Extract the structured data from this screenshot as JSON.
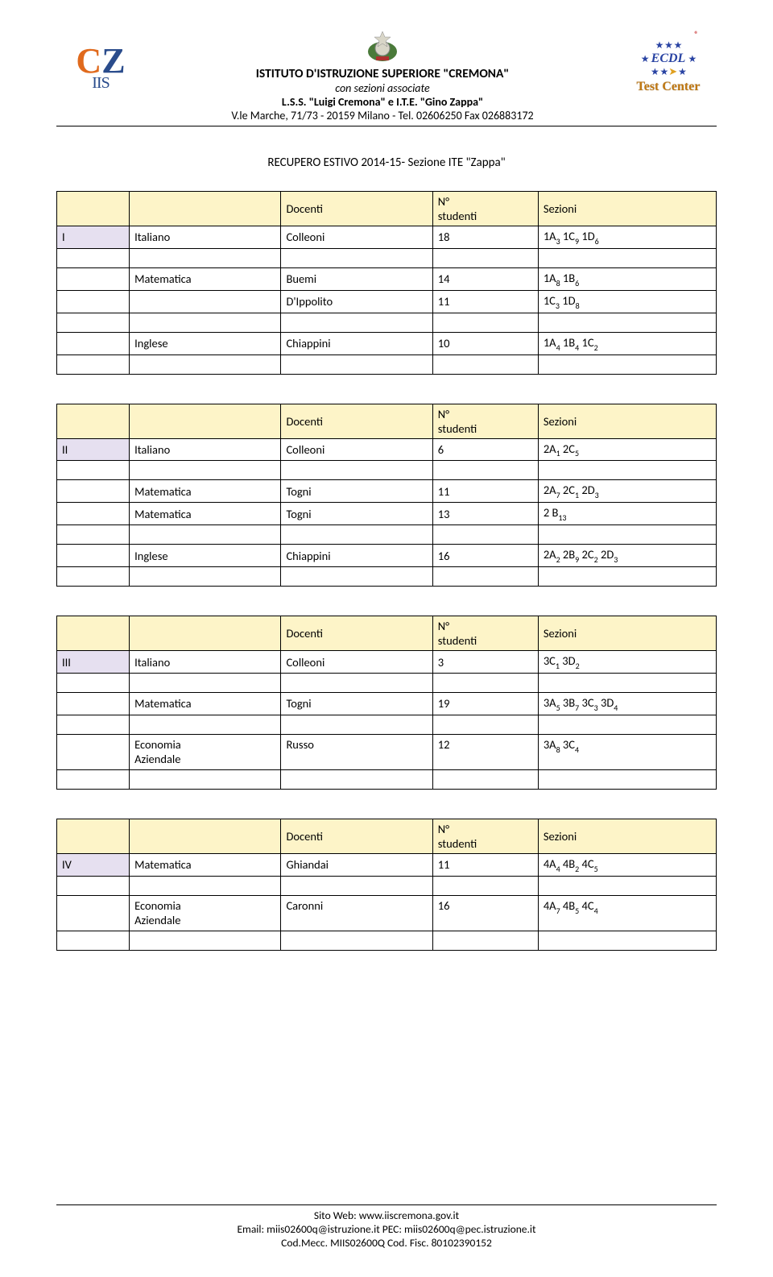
{
  "header": {
    "logo_letters": {
      "C": "C",
      "Z": "Z",
      "IIS": "IIS"
    },
    "inst_title": "ISTITUTO D'ISTRUZIONE SUPERIORE \"CREMONA\"",
    "inst_sub": "con sezioni associate",
    "inst_line3": "L.S.S. \"Luigi Cremona\" e I.T.E. \"Gino Zappa\"",
    "inst_line4": "V.le Marche, 71/73 - 20159 Milano  - Tel. 02606250 Fax 026883172",
    "ecdl": "ECDL",
    "test_center": "Test Center",
    "reg": "®"
  },
  "doc_title": "RECUPERO ESTIVO 2014-15- Sezione ITE \"Zappa\"",
  "col_headers": {
    "docenti": "Docenti",
    "n_studenti_1": "N°",
    "n_studenti_2": "studenti",
    "sezioni": "Sezioni"
  },
  "tables": {
    "t1": {
      "level": "I",
      "rows": [
        {
          "c2": "Italiano",
          "c3": "Colleoni",
          "c4": "18",
          "sez": [
            [
              "1A",
              "3"
            ],
            [
              "1C",
              "9"
            ],
            [
              "1D",
              "6"
            ]
          ]
        },
        null,
        {
          "c2": "Matematica",
          "c3": "Buemi",
          "c4": "14",
          "sez": [
            [
              "1A",
              "8"
            ],
            [
              "1B",
              "6"
            ]
          ]
        },
        {
          "c2": "",
          "c3": "D'Ippolito",
          "c4": "11",
          "sez": [
            [
              "1C",
              "3"
            ],
            [
              "1D",
              "8"
            ]
          ]
        },
        null,
        {
          "c2": "Inglese",
          "c3": "Chiappini",
          "c4": "10",
          "sez": [
            [
              "1A",
              "4"
            ],
            [
              "1B",
              "4"
            ],
            [
              "1C",
              "2"
            ]
          ]
        },
        null
      ]
    },
    "t2": {
      "level": "II",
      "rows": [
        {
          "c2": "Italiano",
          "c3": "Colleoni",
          "c4": "6",
          "sez": [
            [
              "2A",
              "1"
            ],
            [
              "2C",
              "5"
            ]
          ]
        },
        null,
        {
          "c2": "Matematica",
          "c3": "Togni",
          "c4": "11",
          "sez": [
            [
              "2A",
              "7"
            ],
            [
              "2C",
              "1"
            ],
            [
              "2D",
              "3"
            ]
          ]
        },
        {
          "c2": "Matematica",
          "c3": "Togni",
          "c4": "13",
          "sez": [
            [
              "2 B",
              "13"
            ]
          ]
        },
        null,
        {
          "c2": "Inglese",
          "c3": "Chiappini",
          "c4": "16",
          "sez": [
            [
              "2A",
              "2"
            ],
            [
              "2B",
              "9"
            ],
            [
              "2C",
              "2"
            ],
            [
              "2D",
              "3"
            ]
          ]
        },
        null
      ]
    },
    "t3": {
      "level": "III",
      "rows": [
        {
          "c2": "Italiano",
          "c3": "Colleoni",
          "c4": "3",
          "sez": [
            [
              "3C",
              "1"
            ],
            [
              "3D",
              "2"
            ]
          ]
        },
        null,
        {
          "c2": "Matematica",
          "c3": "Togni",
          "c4": "19",
          "sez": [
            [
              "3A",
              "5"
            ],
            [
              "3B",
              "7"
            ],
            [
              "3C",
              "3"
            ],
            [
              "3D",
              "4"
            ]
          ]
        },
        null,
        {
          "c2": "Economia Aziendale",
          "c3": "Russo",
          "c4": "12",
          "sez": [
            [
              "3A",
              "8"
            ],
            [
              "3C",
              "4"
            ]
          ]
        },
        null
      ],
      "tall_row_index": 4
    },
    "t4": {
      "level": "IV",
      "level_col": 1,
      "rows": [
        {
          "c2": "Matematica",
          "c3": "Ghiandai",
          "c4": "11",
          "sez": [
            [
              "4A",
              "4"
            ],
            [
              "4B",
              "2"
            ],
            [
              "4C",
              "5"
            ]
          ]
        },
        null,
        {
          "c2": "Economia Aziendale",
          "c3": "Caronni",
          "c4": "16",
          "sez": [
            [
              "4A",
              "7"
            ],
            [
              "4B",
              "5"
            ],
            [
              "4C",
              "4"
            ]
          ]
        },
        null
      ],
      "tall_row_index": 2
    }
  },
  "footer": {
    "l1": "Sito Web: www.iiscremona.gov.it",
    "l2": "Email: miis02600q@istruzione.it  PEC: miis02600q@pec.istruzione.it",
    "l3": "Cod.Mecc. MIIS02600Q  Cod. Fisc. 80102390152"
  }
}
